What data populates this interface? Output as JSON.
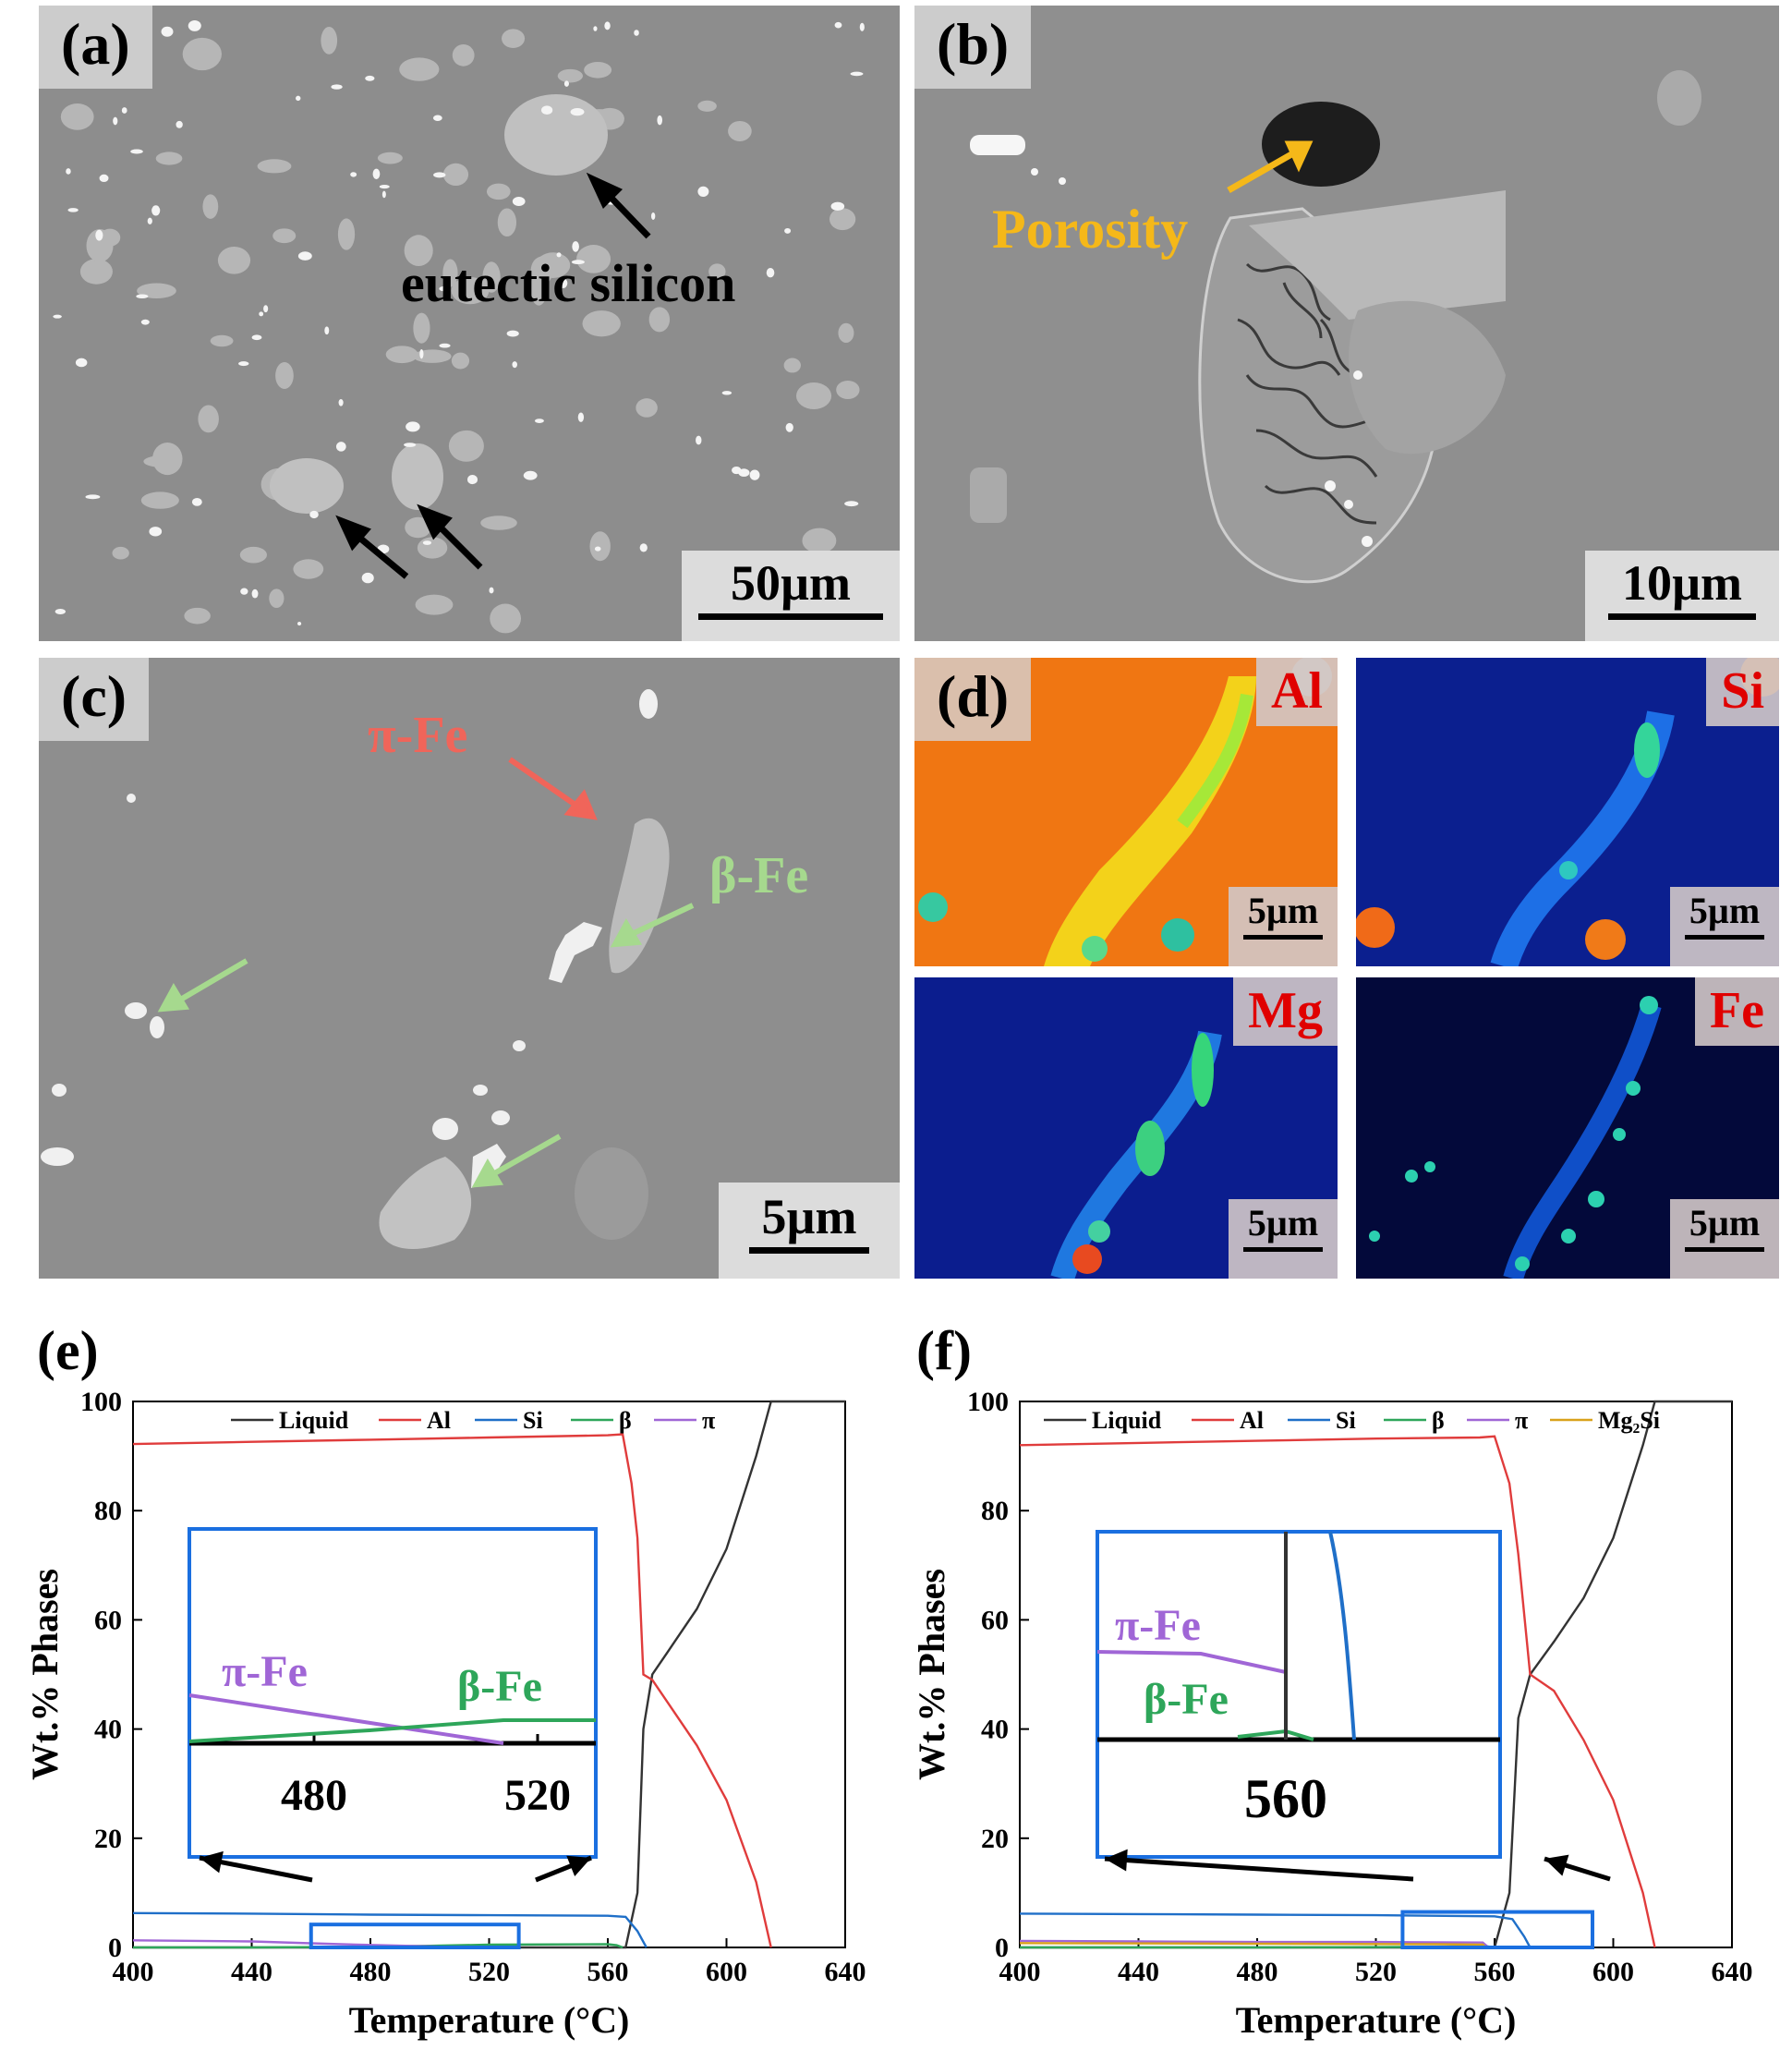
{
  "panels": {
    "a": {
      "label": "(a)",
      "scale": "50µm",
      "annotation": "eutectic silicon"
    },
    "b": {
      "label": "(b)",
      "scale": "10µm",
      "annotation": "Porosity"
    },
    "c": {
      "label": "(c)",
      "scale": "5µm",
      "annotation_pi": "π-Fe",
      "annotation_beta": "β-Fe"
    },
    "d": {
      "label": "(d)",
      "scale": "5µm",
      "maps": [
        {
          "element": "Al"
        },
        {
          "element": "Si"
        },
        {
          "element": "Mg"
        },
        {
          "element": "Fe"
        }
      ]
    },
    "e": {
      "label": "(e)"
    },
    "f": {
      "label": "(f)"
    }
  },
  "colors": {
    "liquid": "#333333",
    "al": "#e03c3c",
    "si": "#1f6fc8",
    "beta": "#2ea65a",
    "pi": "#a066d6",
    "mg2si": "#d9a21b",
    "inset_border": "#1a6fe0",
    "annot_yellow": "#f5b819",
    "annot_red": "#f0655a",
    "annot_green": "#a6d98e"
  },
  "chart_data": [
    {
      "type": "line",
      "panel": "(e)",
      "xlabel": "Temperature (°C)",
      "ylabel": "Wt.% Phases",
      "xlim": [
        400,
        640
      ],
      "ylim": [
        0,
        100
      ],
      "xticks": [
        400,
        440,
        480,
        520,
        560,
        600,
        640
      ],
      "yticks": [
        0,
        20,
        40,
        60,
        80,
        100
      ],
      "legend": [
        "Liquid",
        "Al",
        "Si",
        "β",
        "π"
      ],
      "legend_position": "top",
      "series": [
        {
          "name": "Liquid",
          "color": "#333333",
          "x": [
            400,
            566,
            570,
            572,
            575,
            580,
            590,
            600,
            610,
            615,
            640
          ],
          "y": [
            0,
            0,
            10,
            40,
            50,
            54,
            62,
            73,
            90,
            100,
            100
          ]
        },
        {
          "name": "Al",
          "color": "#e03c3c",
          "x": [
            400,
            440,
            480,
            520,
            560,
            565,
            568,
            570,
            572,
            575,
            580,
            590,
            600,
            610,
            615
          ],
          "y": [
            92.2,
            92.6,
            93.0,
            93.4,
            93.8,
            94.0,
            85,
            75,
            50,
            49,
            45,
            37,
            27,
            12,
            0
          ]
        },
        {
          "name": "Si",
          "color": "#1f6fc8",
          "x": [
            400,
            440,
            480,
            520,
            560,
            566,
            570,
            573
          ],
          "y": [
            6.3,
            6.2,
            6.0,
            5.9,
            5.8,
            5.6,
            3,
            0
          ]
        },
        {
          "name": "β",
          "color": "#2ea65a",
          "x": [
            400,
            440,
            470,
            500,
            520,
            560,
            563,
            565
          ],
          "y": [
            0,
            0,
            0.1,
            0.3,
            0.5,
            0.6,
            0.4,
            0
          ]
        },
        {
          "name": "π",
          "color": "#a066d6",
          "x": [
            400,
            440,
            470,
            500,
            510
          ],
          "y": [
            1.3,
            1.1,
            0.6,
            0.2,
            0
          ]
        }
      ],
      "inset": {
        "labels": [
          "π-Fe",
          "β-Fe"
        ],
        "ticks": [
          480,
          520
        ]
      }
    },
    {
      "type": "line",
      "panel": "(f)",
      "xlabel": "Temperature (°C)",
      "ylabel": "Wt.% Phases",
      "xlim": [
        400,
        640
      ],
      "ylim": [
        0,
        100
      ],
      "xticks": [
        400,
        440,
        480,
        520,
        560,
        600,
        640
      ],
      "yticks": [
        0,
        20,
        40,
        60,
        80,
        100
      ],
      "legend": [
        "Liquid",
        "Al",
        "Si",
        "β",
        "π",
        "Mg₂Si"
      ],
      "legend_position": "top",
      "series": [
        {
          "name": "Liquid",
          "color": "#333333",
          "x": [
            400,
            560,
            565,
            568,
            572,
            580,
            590,
            600,
            610,
            614,
            640
          ],
          "y": [
            0,
            0,
            10,
            42,
            50,
            56,
            64,
            75,
            92,
            100,
            100
          ]
        },
        {
          "name": "Al",
          "color": "#e03c3c",
          "x": [
            400,
            440,
            480,
            520,
            555,
            560,
            565,
            568,
            572,
            580,
            590,
            600,
            610,
            614
          ],
          "y": [
            92.0,
            92.4,
            92.8,
            93.2,
            93.4,
            93.6,
            85,
            72,
            50,
            47,
            38,
            27,
            10,
            0
          ]
        },
        {
          "name": "Si",
          "color": "#1f6fc8",
          "x": [
            400,
            440,
            480,
            520,
            560,
            566,
            570,
            572
          ],
          "y": [
            6.2,
            6.1,
            6.0,
            5.9,
            5.7,
            5.2,
            2,
            0
          ]
        },
        {
          "name": "β",
          "color": "#2ea65a",
          "x": [
            400,
            480,
            540,
            556,
            560
          ],
          "y": [
            0,
            0,
            0.1,
            0.3,
            0
          ]
        },
        {
          "name": "π",
          "color": "#a066d6",
          "x": [
            400,
            440,
            480,
            520,
            556,
            558
          ],
          "y": [
            1.2,
            1.1,
            1.0,
            1.0,
            0.9,
            0
          ]
        },
        {
          "name": "Mg₂Si",
          "color": "#d9a21b",
          "x": [
            400,
            480,
            540,
            556,
            557
          ],
          "y": [
            0.8,
            0.7,
            0.6,
            0.5,
            0
          ]
        }
      ],
      "inset": {
        "labels": [
          "π-Fe",
          "β-Fe"
        ],
        "ticks": [
          560
        ]
      }
    }
  ]
}
